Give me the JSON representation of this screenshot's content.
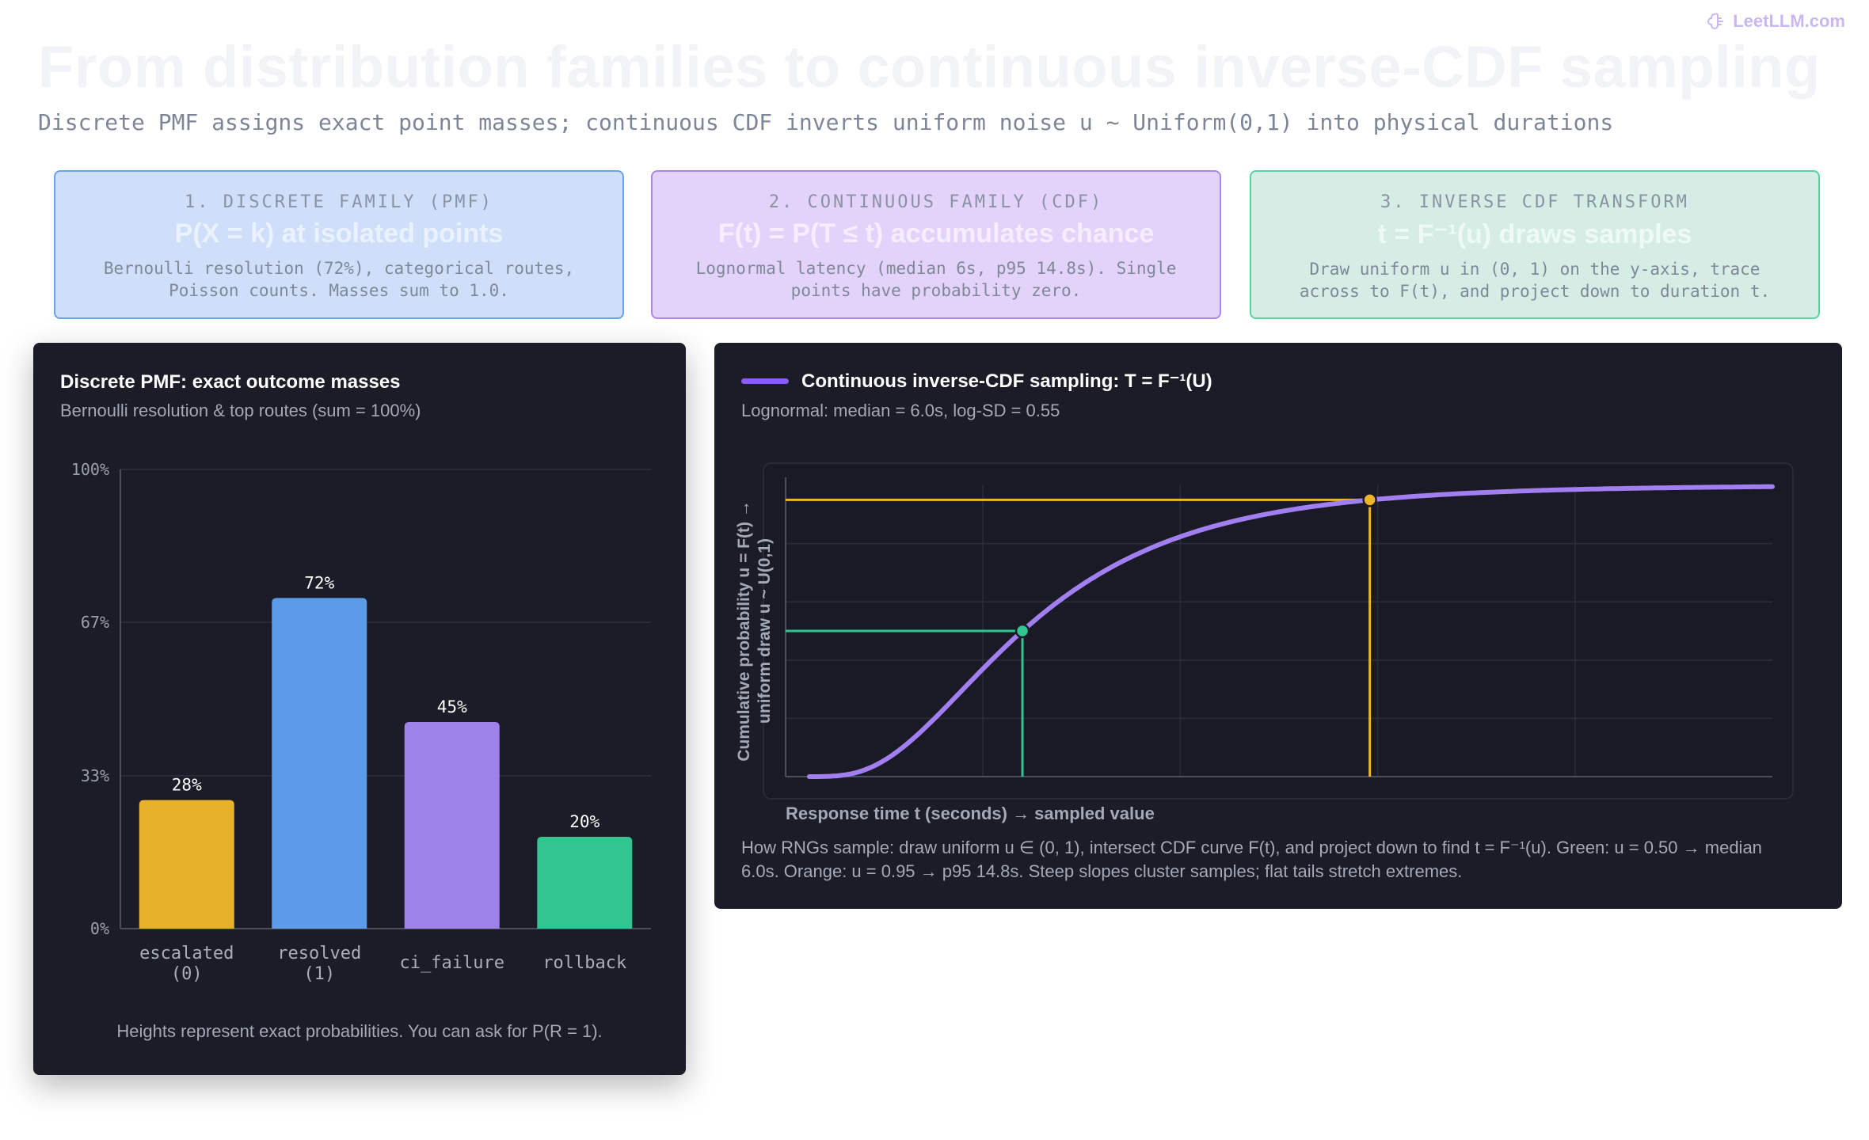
{
  "brand": {
    "name": "LeetLLM.com",
    "icon": "brain-icon"
  },
  "header": {
    "title": "From distribution families to continuous inverse-CDF sampling",
    "subtitle": "Discrete PMF assigns exact point masses; continuous CDF inverts uniform noise u ~ Uniform(0,1) into physical durations"
  },
  "cards": [
    {
      "step": "1. DISCRETE FAMILY (PMF)",
      "heading": "P(X = k) at isolated points",
      "desc": "Bernoulli resolution (72%), categorical routes, Poisson counts. Masses sum to 1.0."
    },
    {
      "step": "2. CONTINUOUS FAMILY (CDF)",
      "heading": "F(t) = P(T ≤ t) accumulates chance",
      "desc": "Lognormal latency (median 6s, p95 14.8s). Single points have probability zero."
    },
    {
      "step": "3. INVERSE CDF TRANSFORM",
      "heading": "t = F⁻¹(u) draws samples",
      "desc": "Draw uniform u in (0, 1) on the y-axis, trace across to F(t), and project down to duration t."
    }
  ],
  "left_panel": {
    "title": "Discrete PMF: exact outcome masses",
    "subtitle": "Bernoulli resolution & top routes (sum = 100%)",
    "note": "Heights represent exact probabilities. You can ask for P(R = 1)."
  },
  "right_panel": {
    "title": "Continuous inverse-CDF sampling: T = F⁻¹(U)",
    "subtitle": "Lognormal: median = 6.0s, log-SD = 0.55",
    "note": "How RNGs sample: draw uniform u ∈ (0, 1), intersect CDF curve F(t), and project down to find t = F⁻¹(u). Green: u = 0.50 → median 6.0s. Orange: u = 0.95 → p95 14.8s. Steep slopes cluster samples; flat tails stretch extremes."
  },
  "chart_data": [
    {
      "type": "bar",
      "title": "Discrete PMF: exact outcome masses",
      "subtitle": "Bernoulli resolution & top routes (sum = 100%)",
      "categories": [
        "escalated\n(0)",
        "resolved\n(1)",
        "ci_failure",
        "rollback"
      ],
      "values": [
        28,
        72,
        45,
        20
      ],
      "value_labels": [
        "28%",
        "72%",
        "45%",
        "20%"
      ],
      "colors": [
        "#e8b12a",
        "#5b9be8",
        "#9d82e8",
        "#33c58f"
      ],
      "ylim": [
        0,
        100
      ],
      "yticks": [
        "0%",
        "33%",
        "67%",
        "100%"
      ],
      "ytick_values": [
        0,
        33.3,
        66.7,
        100
      ],
      "grid": true
    },
    {
      "type": "line",
      "title": "Continuous inverse-CDF sampling: T = F⁻¹(U)",
      "subtitle": "Lognormal: median = 6.0s, log-SD = 0.55",
      "xlabel": "Response time t (seconds) → sampled value",
      "ylabel": "Cumulative probability u = F(t) →",
      "ylabel2": "uniform draw u ~ U(0,1)",
      "distribution": {
        "family": "lognormal",
        "median": 6.0,
        "log_sd": 0.55
      },
      "xlim": [
        0,
        25
      ],
      "ylim": [
        0,
        1
      ],
      "series_color": "#a27ff0",
      "legend_color": "#8b5cf6",
      "samples": [
        {
          "u": 0.5,
          "t": 6.0,
          "color": "#33c58f"
        },
        {
          "u": 0.95,
          "t": 14.8,
          "color": "#f0b429"
        }
      ],
      "grid": true
    }
  ]
}
